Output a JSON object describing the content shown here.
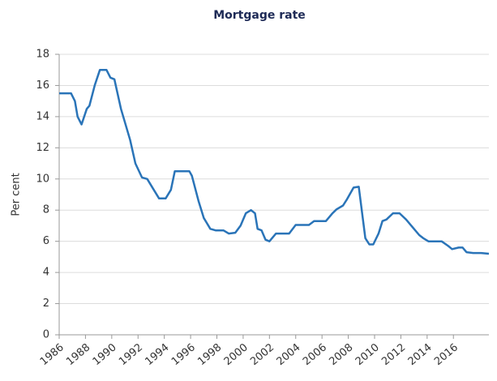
{
  "chart_data": {
    "type": "line",
    "title": "Mortgage rate",
    "y_label": "Per cent",
    "x": [
      1986,
      1986.9,
      1987.2,
      1987.4,
      1987.7,
      1988.1,
      1988.3,
      1988.7,
      1989.1,
      1989.6,
      1989.9,
      1990.2,
      1990.7,
      1991.4,
      1991.8,
      1992.3,
      1992.7,
      1993.2,
      1993.6,
      1994.1,
      1994.5,
      1994.8,
      1995.9,
      1996.1,
      1996.6,
      1997.0,
      1997.5,
      1997.9,
      1998.5,
      1998.9,
      1999.4,
      1999.8,
      2000.2,
      2000.6,
      2000.9,
      2001.1,
      2001.4,
      2001.7,
      2002.0,
      2002.5,
      2003.5,
      2004.0,
      2005.0,
      2005.4,
      2006.3,
      2006.8,
      2007.1,
      2007.6,
      2007.9,
      2008.4,
      2008.8,
      2009.1,
      2009.3,
      2009.6,
      2009.9,
      2010.3,
      2010.6,
      2010.9,
      2011.4,
      2011.9,
      2012.4,
      2013.0,
      2013.4,
      2013.7,
      2014.1,
      2015.1,
      2015.6,
      2015.9,
      2016.4,
      2016.7,
      2017.0,
      2017.5,
      2018.1,
      2018.7
    ],
    "series": [
      {
        "name": "Mortgage rate",
        "color": "#2a74b8",
        "values": [
          15.5,
          15.5,
          15.0,
          14.0,
          13.5,
          14.5,
          14.7,
          16.0,
          17.0,
          17.0,
          16.5,
          16.4,
          14.5,
          12.5,
          11.0,
          10.1,
          10.0,
          9.3,
          8.75,
          8.75,
          9.3,
          10.5,
          10.5,
          10.2,
          8.6,
          7.5,
          6.8,
          6.7,
          6.7,
          6.5,
          6.55,
          7.0,
          7.8,
          8.0,
          7.8,
          6.8,
          6.7,
          6.1,
          6.0,
          6.5,
          6.5,
          7.05,
          7.05,
          7.3,
          7.3,
          7.8,
          8.05,
          8.3,
          8.7,
          9.45,
          9.5,
          7.5,
          6.2,
          5.8,
          5.8,
          6.5,
          7.3,
          7.4,
          7.8,
          7.8,
          7.4,
          6.8,
          6.4,
          6.2,
          6.0,
          6.0,
          5.7,
          5.5,
          5.6,
          5.6,
          5.3,
          5.25,
          5.25,
          5.2
        ]
      }
    ],
    "xlim": [
      1986,
      2018.7
    ],
    "xticks": [
      1986,
      1988,
      1990,
      1992,
      1994,
      1996,
      1998,
      2000,
      2002,
      2004,
      2006,
      2008,
      2010,
      2012,
      2014,
      2016
    ],
    "ylim": [
      0,
      18
    ],
    "yticks": [
      0,
      2,
      4,
      6,
      8,
      10,
      12,
      14,
      16,
      18
    ],
    "grid": true
  }
}
